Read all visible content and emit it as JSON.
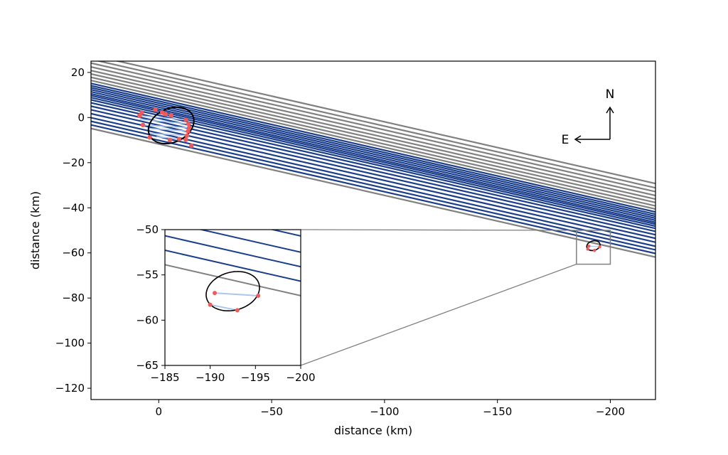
{
  "chart_data": {
    "type": "line",
    "xlabel": "distance (km)",
    "ylabel": "distance (km)",
    "xlim": [
      30,
      -220
    ],
    "ylim": [
      -125,
      25
    ],
    "xticks": [
      0,
      -50,
      -100,
      -150,
      -200
    ],
    "yticks": [
      20,
      0,
      -20,
      -40,
      -60,
      -80,
      -100,
      -120
    ],
    "tick_labels_x": [
      "0",
      "−50",
      "−100",
      "−150",
      "−200"
    ],
    "tick_labels_y": [
      "20",
      "0",
      "−20",
      "−40",
      "−60",
      "−80",
      "−100",
      "−120"
    ],
    "tracks": {
      "slope_km_per_km": 0.228,
      "gray_offsets_at_x0": [
        20.9,
        19.0,
        17.3,
        15.6,
        14.0,
        12.5,
        11.0,
        9.6,
        -11.7
      ],
      "blue_offsets_at_x0": [
        8.3,
        7.3,
        6.4,
        5.5,
        4.6,
        3.7,
        2.9,
        2.0,
        1.0,
        -0.3,
        -1.8,
        -3.4,
        -5.1,
        -6.9,
        -8.5,
        -10.1
      ],
      "colors": {
        "gray": "#808080",
        "blue": "#1a3e8c",
        "chord": "#a9c6ec"
      }
    },
    "ellipses": [
      {
        "name": "near",
        "center": [
          -5.5,
          -3.5
        ],
        "rx": 10.5,
        "ry": 7.5,
        "angle_deg": -24
      },
      {
        "name": "far",
        "center": [
          -192.5,
          -56.8
        ],
        "rx": 3.0,
        "ry": 2.1,
        "angle_deg": -15
      }
    ],
    "points_near": [
      [
        8.5,
        0.8
      ],
      [
        7.5,
        2.2
      ],
      [
        1.5,
        3.5
      ],
      [
        -1.5,
        2.3
      ],
      [
        -3.0,
        1.5
      ],
      [
        -5.5,
        1.0
      ],
      [
        -12.0,
        -1.0
      ],
      [
        -13.2,
        -2.8
      ],
      [
        -13.5,
        -4.5
      ],
      [
        -13.0,
        -6.0
      ],
      [
        -12.5,
        -8.0
      ],
      [
        -9.0,
        -9.5
      ],
      [
        -5.0,
        -10.0
      ],
      [
        7.0,
        -3.3
      ],
      [
        -12.0,
        -9.8
      ],
      [
        -14.5,
        -12.5
      ],
      [
        4.0,
        -8.8
      ]
    ],
    "chords_near": [
      [
        [
          8.5,
          0.8
        ],
        [
          -12.0,
          -1.0
        ]
      ],
      [
        [
          8.5,
          -0.8
        ],
        [
          -13.2,
          -2.8
        ]
      ],
      [
        [
          7.0,
          -3.3
        ],
        [
          -13.5,
          -4.5
        ]
      ],
      [
        [
          5.0,
          -4.8
        ],
        [
          -13.0,
          -6.0
        ]
      ],
      [
        [
          4.0,
          -7.0
        ],
        [
          -12.5,
          -8.0
        ]
      ],
      [
        [
          1.0,
          -8.5
        ],
        [
          -9.0,
          -9.5
        ]
      ]
    ],
    "points_far": [
      [
        -190.5,
        -57.0
      ],
      [
        -195.3,
        -57.3
      ],
      [
        -190.0,
        -58.3
      ],
      [
        -193.0,
        -58.9
      ]
    ],
    "chords_far": [
      [
        [
          -190.5,
          -57.0
        ],
        [
          -195.3,
          -57.3
        ]
      ],
      [
        [
          -190.0,
          -58.3
        ],
        [
          -193.0,
          -58.9
        ]
      ]
    ],
    "inset": {
      "xlim": [
        -185,
        -200
      ],
      "ylim": [
        -65,
        -50
      ],
      "xticks": [
        -185,
        -190,
        -195,
        -200
      ],
      "yticks": [
        -50,
        -55,
        -60,
        -65
      ],
      "tick_labels_x": [
        "−185",
        "−190",
        "−195",
        "−200"
      ],
      "tick_labels_y": [
        "−50",
        "−55",
        "−60",
        "−65"
      ]
    },
    "compass": {
      "north": "N",
      "east": "E"
    },
    "colors": {
      "points": "#f05a5a",
      "ellipse": "#000000",
      "box": "#808080"
    }
  }
}
